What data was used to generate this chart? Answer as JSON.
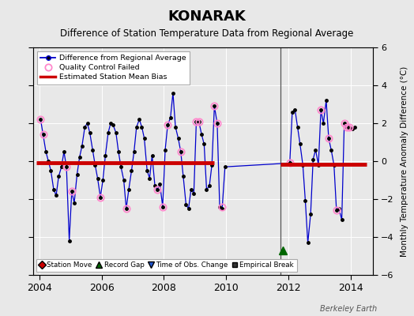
{
  "title": "KONARAK",
  "subtitle": "Difference of Station Temperature Data from Regional Average",
  "ylabel": "Monthly Temperature Anomaly Difference (°C)",
  "xlim": [
    2003.8,
    2014.7
  ],
  "ylim": [
    -6,
    6
  ],
  "yticks": [
    -6,
    -4,
    -2,
    0,
    2,
    4,
    6
  ],
  "xticks": [
    2004,
    2006,
    2008,
    2010,
    2012,
    2014
  ],
  "background_color": "#e8e8e8",
  "plot_bg_color": "#e8e8e8",
  "title_fontsize": 13,
  "subtitle_fontsize": 8.5,
  "watermark": "Berkeley Earth",
  "bias_segments": [
    {
      "x_start": 2003.9,
      "x_end": 2009.6,
      "y": -0.1
    },
    {
      "x_start": 2011.75,
      "x_end": 2014.5,
      "y": -0.15
    }
  ],
  "break_line_x": 2011.75,
  "record_gap_x": 2011.83,
  "record_gap_y": -4.7,
  "main_data": {
    "x": [
      2004.04,
      2004.12,
      2004.21,
      2004.29,
      2004.37,
      2004.46,
      2004.54,
      2004.62,
      2004.71,
      2004.79,
      2004.87,
      2004.96,
      2005.04,
      2005.12,
      2005.21,
      2005.29,
      2005.37,
      2005.46,
      2005.54,
      2005.62,
      2005.71,
      2005.79,
      2005.87,
      2005.96,
      2006.04,
      2006.12,
      2006.21,
      2006.29,
      2006.37,
      2006.46,
      2006.54,
      2006.62,
      2006.71,
      2006.79,
      2006.87,
      2006.96,
      2007.04,
      2007.12,
      2007.21,
      2007.29,
      2007.37,
      2007.46,
      2007.54,
      2007.62,
      2007.71,
      2007.79,
      2007.87,
      2007.96,
      2008.04,
      2008.12,
      2008.21,
      2008.29,
      2008.37,
      2008.46,
      2008.54,
      2008.62,
      2008.71,
      2008.79,
      2008.87,
      2008.96,
      2009.04,
      2009.12,
      2009.21,
      2009.29,
      2009.37,
      2009.46,
      2009.54,
      2009.62,
      2009.71,
      2009.79,
      2009.87,
      2009.96,
      2012.04,
      2012.12,
      2012.21,
      2012.29,
      2012.37,
      2012.46,
      2012.54,
      2012.62,
      2012.71,
      2012.79,
      2012.87,
      2012.96,
      2013.04,
      2013.12,
      2013.21,
      2013.29,
      2013.37,
      2013.46,
      2013.54,
      2013.62,
      2013.71,
      2013.79,
      2013.87,
      2013.96,
      2014.04,
      2014.12
    ],
    "y": [
      2.2,
      1.4,
      0.5,
      0.0,
      -0.5,
      -1.5,
      -1.8,
      -0.8,
      -0.3,
      0.5,
      -0.3,
      -4.2,
      -1.6,
      -2.2,
      -0.7,
      0.2,
      0.8,
      1.8,
      2.0,
      1.5,
      0.6,
      -0.2,
      -0.9,
      -1.9,
      -1.0,
      0.3,
      1.5,
      2.0,
      1.9,
      1.5,
      0.5,
      -0.3,
      -1.0,
      -2.5,
      -1.5,
      -0.5,
      0.5,
      1.8,
      2.2,
      1.8,
      1.2,
      -0.5,
      -0.9,
      0.3,
      -1.3,
      -1.5,
      -1.2,
      -2.4,
      0.6,
      1.9,
      2.3,
      3.6,
      1.8,
      1.2,
      0.5,
      -0.8,
      -2.3,
      -2.5,
      -1.5,
      -1.7,
      2.1,
      2.1,
      1.4,
      0.9,
      -1.5,
      -1.3,
      -0.2,
      2.9,
      2.0,
      -2.4,
      -2.5,
      -0.3,
      -0.1,
      2.6,
      2.7,
      1.8,
      0.9,
      -0.2,
      -2.1,
      -4.3,
      -2.8,
      0.1,
      0.6,
      -0.2,
      2.7,
      2.0,
      3.2,
      1.2,
      0.6,
      -0.2,
      -2.6,
      -2.5,
      -3.1,
      2.0,
      1.8,
      1.8,
      1.7,
      1.8
    ]
  },
  "qc_failed_points": {
    "x": [
      2004.04,
      2004.12,
      2004.87,
      2005.04,
      2005.96,
      2006.79,
      2007.79,
      2007.96,
      2008.12,
      2008.54,
      2009.04,
      2009.12,
      2009.62,
      2009.71,
      2009.87,
      2012.04,
      2013.04,
      2013.29,
      2013.54,
      2013.79,
      2013.87,
      2013.96
    ],
    "y": [
      2.2,
      1.4,
      -0.3,
      -1.6,
      -1.9,
      -2.5,
      -1.5,
      -2.4,
      1.9,
      0.5,
      2.1,
      2.1,
      2.9,
      2.0,
      -2.4,
      -0.1,
      2.7,
      1.2,
      -2.6,
      2.0,
      1.8,
      1.8
    ]
  },
  "line_color": "#0000cc",
  "marker_color": "#000000",
  "qc_color": "#ff88cc",
  "bias_color": "#cc0000",
  "break_line_color": "#555555",
  "record_gap_color": "#006600",
  "title_color": "#000000",
  "grid_color": "#ffffff"
}
